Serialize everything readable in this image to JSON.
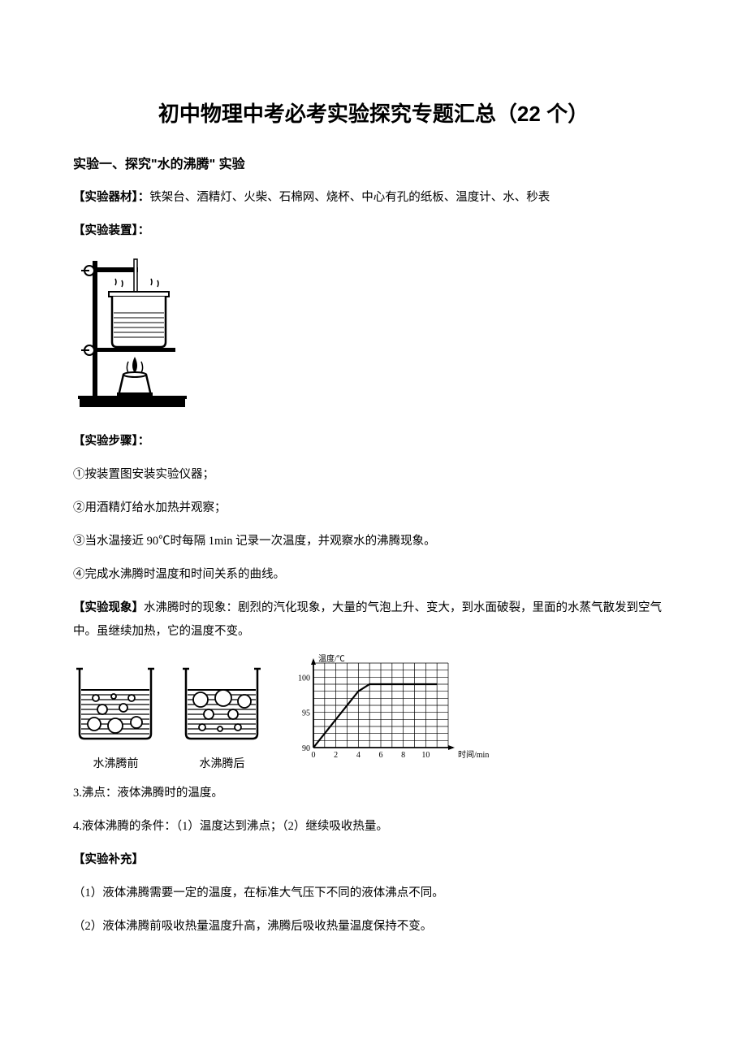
{
  "title": "初中物理中考必考实验探究专题汇总（22 个）",
  "subtitle": "实验一、探究\"水的沸腾\" 实验",
  "labels": {
    "equipment": "【实验器材】：",
    "apparatus": "【实验装置】：",
    "steps": "【实验步骤】：",
    "phenomenon": "【实验现象】",
    "supplement": "【实验补充】"
  },
  "equipment_text": "铁架台、酒精灯、火柴、石棉网、烧杯、中心有孔的纸板、温度计、水、秒表",
  "steps": [
    "①按装置图安装实验仪器；",
    "②用酒精灯给水加热并观察；",
    "③当水温接近 90℃时每隔 1min 记录一次温度，并观察水的沸腾现象。",
    "④完成水沸腾时温度和时间关系的曲线。"
  ],
  "phenomenon_text": "水沸腾时的现象：剧烈的汽化现象，大量的气泡上升、变大，到水面破裂，里面的水蒸气散发到空气中。虽继续加热，它的温度不变。",
  "beaker_captions": {
    "before": "水沸腾前",
    "after": "水沸腾后"
  },
  "points": [
    "3.沸点：液体沸腾时的温度。",
    "4.液体沸腾的条件：（1）温度达到沸点；（2）继续吸收热量。"
  ],
  "supplement": [
    "（1）液体沸腾需要一定的温度，在标准大气压下不同的液体沸点不同。",
    "（2）液体沸腾前吸收热量温度升高，沸腾后吸收热量温度保持不变。"
  ],
  "chart": {
    "type": "line",
    "y_label": "温度/℃",
    "x_label": "时间/min",
    "y_ticks": [
      90,
      95,
      100
    ],
    "x_ticks": [
      0,
      2,
      4,
      6,
      8,
      10
    ],
    "ylim": [
      90,
      102
    ],
    "xlim": [
      0,
      12
    ],
    "grid_rows": 12,
    "grid_cols": 12,
    "grid_color": "#000000",
    "background_color": "#ffffff",
    "line_color": "#000000",
    "tick_fontsize": 10,
    "label_fontsize": 10,
    "data": [
      {
        "t": 0,
        "temp": 90
      },
      {
        "t": 1,
        "temp": 92
      },
      {
        "t": 2,
        "temp": 94
      },
      {
        "t": 3,
        "temp": 96
      },
      {
        "t": 4,
        "temp": 98
      },
      {
        "t": 5,
        "temp": 99
      },
      {
        "t": 6,
        "temp": 99
      },
      {
        "t": 7,
        "temp": 99
      },
      {
        "t": 8,
        "temp": 99
      },
      {
        "t": 9,
        "temp": 99
      },
      {
        "t": 10,
        "temp": 99
      },
      {
        "t": 11,
        "temp": 99
      }
    ]
  },
  "diagrams": {
    "beaker_before": {
      "bubbles_small_top": true
    },
    "beaker_after": {
      "bubbles_big_top": true
    }
  }
}
